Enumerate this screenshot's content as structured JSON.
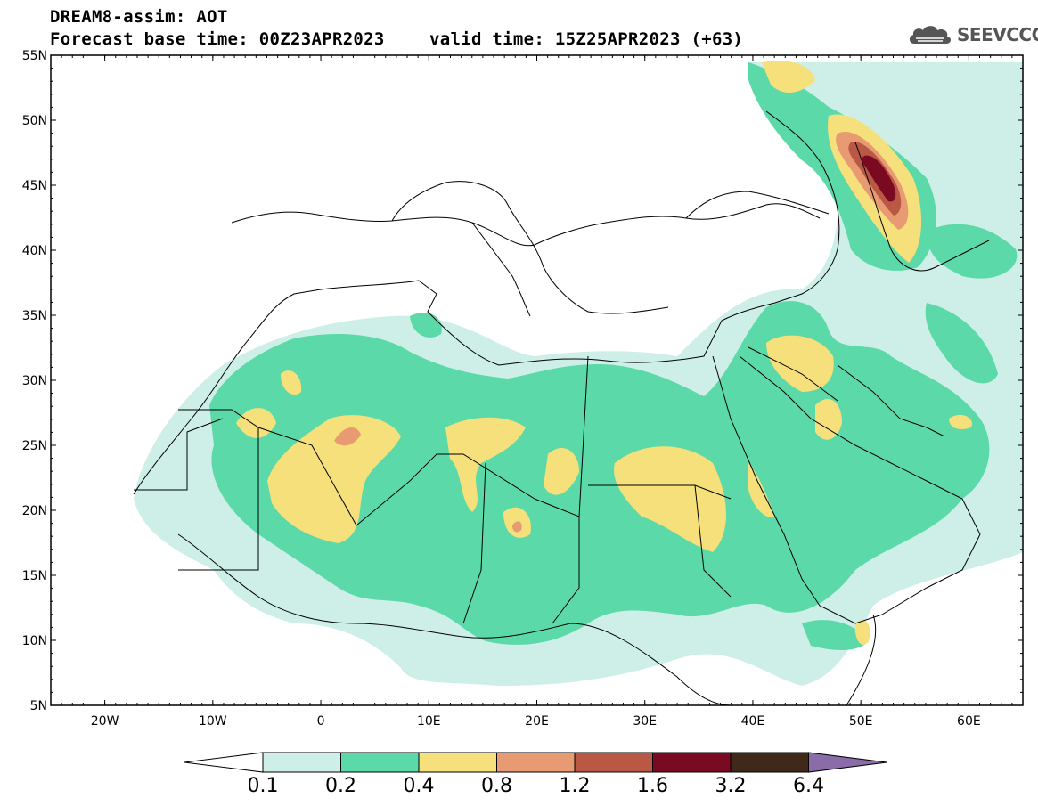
{
  "header": {
    "model_line": "DREAM8-assim: AOT",
    "base_time_line": "Forecast base time: 00Z23APR2023",
    "valid_time_line": "valid time: 15Z25APR2023 (+63)"
  },
  "logo": {
    "text": "SEEVCCC",
    "icon": "cloud-icon"
  },
  "map": {
    "lat_labels": [
      "55N",
      "50N",
      "45N",
      "40N",
      "35N",
      "30N",
      "25N",
      "20N",
      "15N",
      "10N",
      "5N"
    ],
    "lon_labels": [
      "20W",
      "10W",
      "0",
      "10E",
      "20E",
      "30E",
      "40E",
      "50E",
      "60E"
    ],
    "lat_range": [
      5,
      55
    ],
    "lon_range": [
      -25,
      65
    ]
  },
  "colorbar": {
    "labels": [
      "0.1",
      "0.2",
      "0.4",
      "0.8",
      "1.2",
      "1.6",
      "3.2",
      "6.4"
    ],
    "colors": [
      "#cdefe8",
      "#5bd9a8",
      "#f5e07b",
      "#e89a72",
      "#b85845",
      "#7a0a22",
      "#40281a",
      "#8a6ca8"
    ]
  }
}
